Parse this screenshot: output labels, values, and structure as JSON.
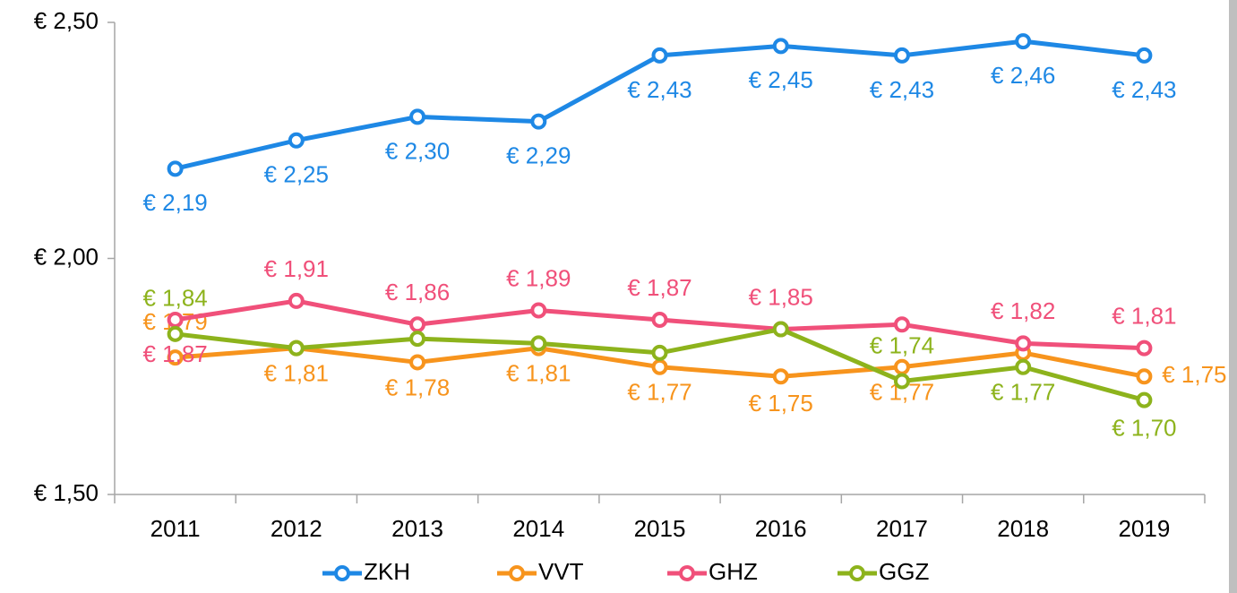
{
  "chart_data": {
    "type": "line",
    "categories": [
      "2011",
      "2012",
      "2013",
      "2014",
      "2015",
      "2016",
      "2017",
      "2018",
      "2019"
    ],
    "series": [
      {
        "name": "ZKH",
        "color": "#1e88e5",
        "values": [
          2.19,
          2.25,
          2.3,
          2.29,
          2.43,
          2.45,
          2.43,
          2.46,
          2.43
        ],
        "value_labels": [
          "€ 2,19",
          "€ 2,25",
          "€ 2,30",
          "€ 2,29",
          "€ 2,43",
          "€ 2,45",
          "€ 2,43",
          "€ 2,46",
          "€ 2,43"
        ]
      },
      {
        "name": "VVT",
        "color": "#f7941d",
        "values": [
          1.79,
          1.81,
          1.78,
          1.81,
          1.77,
          1.75,
          1.77,
          1.8,
          1.75
        ],
        "value_labels": [
          "€ 1,79",
          "€ 1,81",
          "€ 1,78",
          "€ 1,81",
          "€ 1,77",
          "€ 1,75",
          "€ 1,77",
          null,
          "€ 1,75"
        ]
      },
      {
        "name": "GHZ",
        "color": "#f0507a",
        "values": [
          1.87,
          1.91,
          1.86,
          1.89,
          1.87,
          1.85,
          1.86,
          1.82,
          1.81
        ],
        "value_labels": [
          "€ 1,87",
          "€ 1,91",
          "€ 1,86",
          "€ 1,89",
          "€ 1,87",
          "€ 1,85",
          null,
          "€ 1,82",
          "€ 1,81"
        ]
      },
      {
        "name": "GGZ",
        "color": "#8db31c",
        "values": [
          1.84,
          1.81,
          1.83,
          1.82,
          1.8,
          1.85,
          1.74,
          1.77,
          1.7
        ],
        "value_labels": [
          "€ 1,84",
          null,
          null,
          null,
          null,
          null,
          "€ 1,74",
          "€ 1,77",
          "€ 1,70"
        ]
      }
    ],
    "ylim": [
      1.5,
      2.5
    ],
    "yticks": [
      {
        "value": 1.5,
        "label": "€ 1,50"
      },
      {
        "value": 2.0,
        "label": "€ 2,00"
      },
      {
        "value": 2.5,
        "label": "€ 2,50"
      }
    ],
    "grid": false,
    "legend": "bottom"
  }
}
